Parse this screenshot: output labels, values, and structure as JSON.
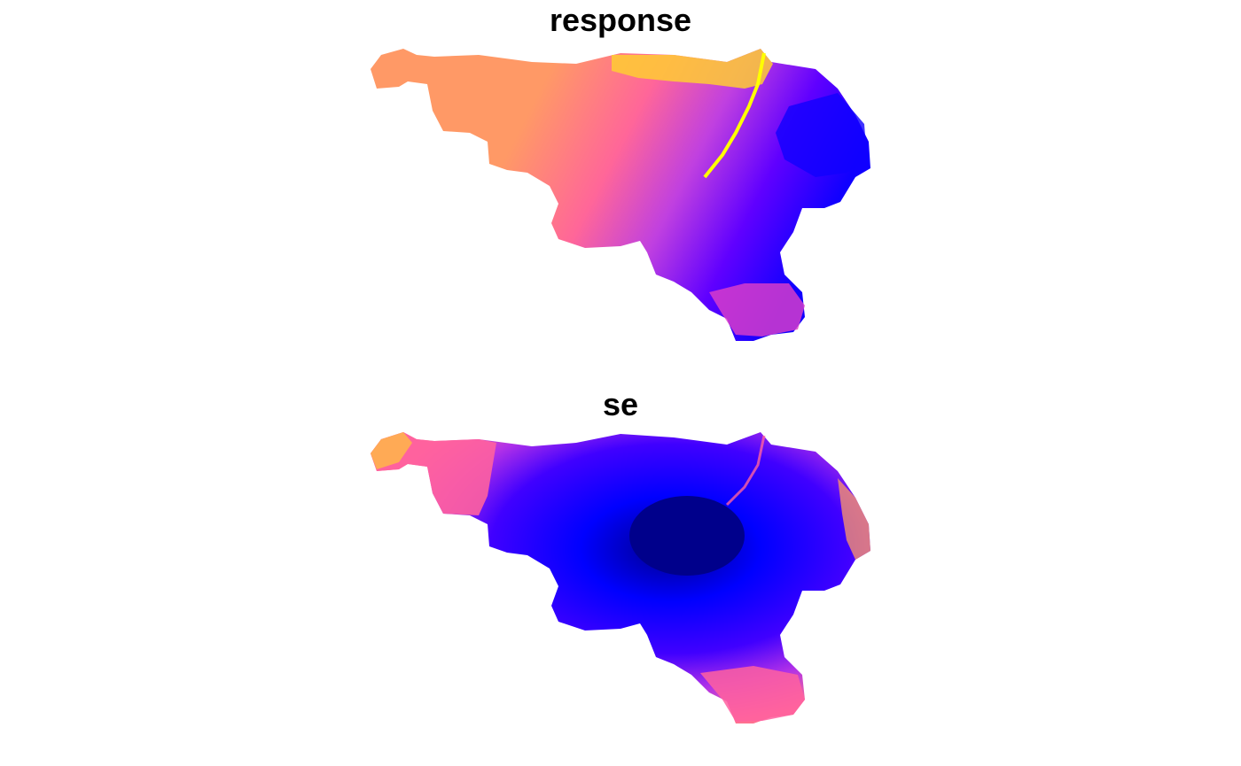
{
  "panels": [
    {
      "title": "response",
      "palette": [
        "#0000ff",
        "#7f00ff",
        "#e040c8",
        "#ff6699",
        "#ff9966",
        "#ffcc33",
        "#ffff00"
      ]
    },
    {
      "title": "se",
      "palette": [
        "#00008b",
        "#0000ff",
        "#7f00ff",
        "#c030e0",
        "#ff60a0",
        "#ffaa55",
        "#ffd040"
      ]
    }
  ]
}
